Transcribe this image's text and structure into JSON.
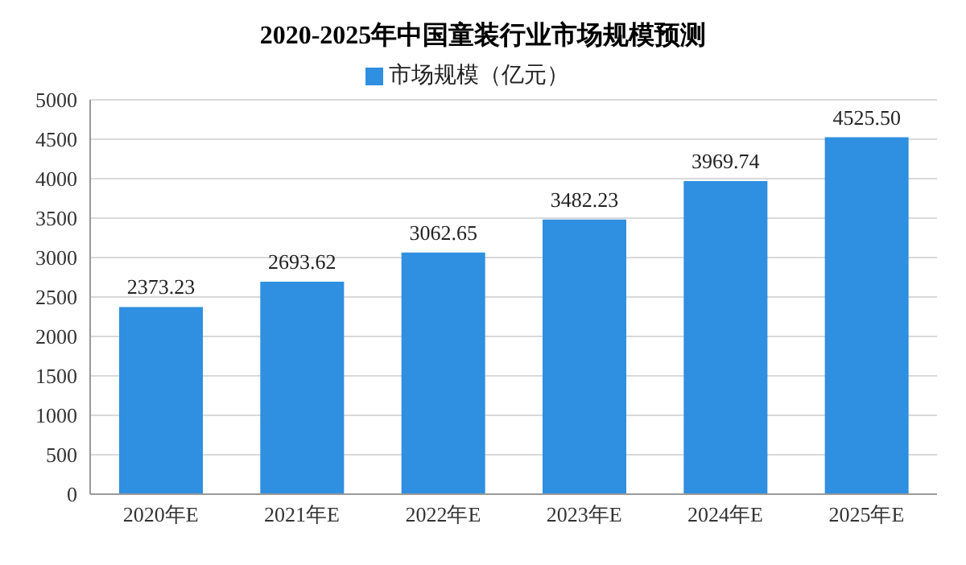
{
  "chart_data": {
    "type": "bar",
    "title": "2020-2025年中国童装行业市场规模预测",
    "categories": [
      "2020年E",
      "2021年E",
      "2022年E",
      "2023年E",
      "2024年E",
      "2025年E"
    ],
    "series": [
      {
        "name": "市场规模（亿元）",
        "color": "#2f8fe0",
        "values": [
          2373.23,
          2693.62,
          3062.65,
          3482.23,
          3969.74,
          4525.5
        ],
        "value_labels": [
          "2373.23",
          "2693.62",
          "3062.65",
          "3482.23",
          "3969.74",
          "4525.50"
        ]
      }
    ],
    "ylim": [
      0,
      5000
    ],
    "yticks": [
      0,
      500,
      1000,
      1500,
      2000,
      2500,
      3000,
      3500,
      4000,
      4500,
      5000
    ],
    "grid": "y",
    "legend": "top"
  }
}
